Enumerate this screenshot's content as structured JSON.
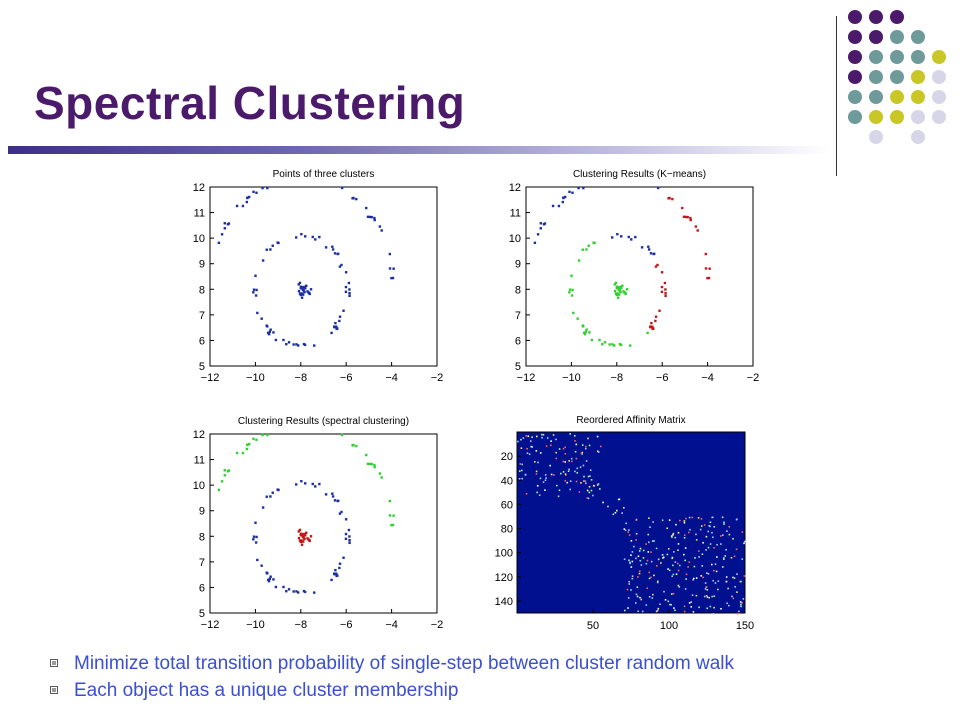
{
  "slide": {
    "title": "Spectral Clustering",
    "bullets": [
      "Minimize total transition probability of single-step between cluster random walk",
      "Each object has a unique cluster membership"
    ]
  },
  "colors": {
    "title": "#4b1a6b",
    "cluster_blue": "#1a2fa0",
    "cluster_green": "#2fd12f",
    "cluster_red": "#c01818",
    "matrix_bg": "#00108f",
    "deco_dots": [
      "#4b1a6b",
      "#6e9a9a",
      "#c9c726",
      "#d6d6e8"
    ]
  },
  "chart_data": [
    {
      "type": "scatter",
      "title": "Points of three clusters",
      "xlim": [
        -12,
        -2
      ],
      "ylim": [
        5,
        12
      ],
      "xticks": [
        -12,
        -10,
        -8,
        -6,
        -4,
        -2
      ],
      "yticks": [
        5,
        6,
        7,
        8,
        9,
        10,
        11,
        12
      ],
      "series_colors": {
        "inner": "blue",
        "ring": "blue",
        "arc": "blue"
      }
    },
    {
      "type": "scatter",
      "title": "Clustering Results (K−means)",
      "xlim": [
        -12,
        -2
      ],
      "ylim": [
        5,
        12
      ],
      "xticks": [
        -12,
        -10,
        -8,
        -6,
        -4,
        -2
      ],
      "yticks": [
        5,
        6,
        7,
        8,
        9,
        10,
        11,
        12
      ],
      "series_colors": {
        "inner": "green",
        "ring": "mixed",
        "arc": "mixed"
      }
    },
    {
      "type": "scatter",
      "title": "Clustering Results (spectral clustering)",
      "xlim": [
        -12,
        -2
      ],
      "ylim": [
        5,
        12
      ],
      "xticks": [
        -12,
        -10,
        -8,
        -6,
        -4,
        -2
      ],
      "yticks": [
        5,
        6,
        7,
        8,
        9,
        10,
        11,
        12
      ],
      "series_colors": {
        "inner": "red",
        "ring": "blue",
        "arc": "green"
      }
    },
    {
      "type": "heatmap",
      "title": "Reordered Affinity Matrix",
      "xticks": [
        50,
        100,
        150
      ],
      "yticks": [
        20,
        40,
        60,
        80,
        100,
        120,
        140
      ],
      "xlim": [
        0,
        150
      ],
      "ylim": [
        150,
        0
      ],
      "blocks": [
        [
          0,
          55
        ],
        [
          55,
          70
        ],
        [
          70,
          150
        ]
      ]
    }
  ]
}
